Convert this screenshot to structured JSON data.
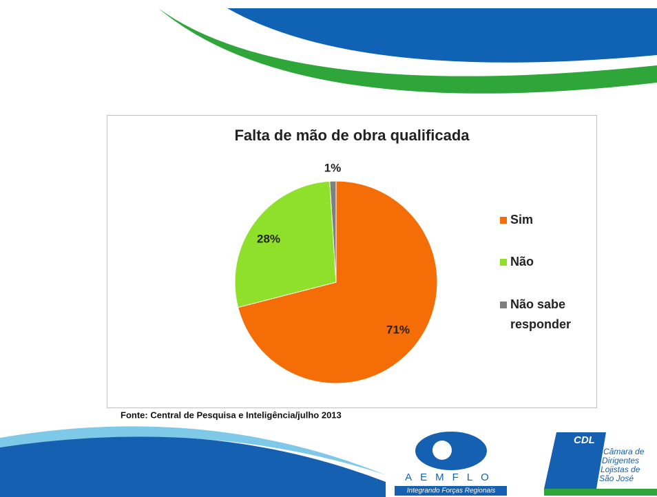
{
  "chart_data": {
    "type": "pie",
    "title": "Falta de mão de obra qualificada",
    "categories": [
      "Sim",
      "Não",
      "Não sabe responder"
    ],
    "values": [
      71,
      28,
      1
    ],
    "value_labels": [
      "71%",
      "28%",
      "1%"
    ],
    "colors": [
      "#f46d06",
      "#8fe02a",
      "#7f7f7f"
    ],
    "legend": "right",
    "source": "Fonte: Central de Pesquisa e Inteligência/julho 2013"
  },
  "logos": {
    "aemflo": "AEMFLO",
    "aemflo_tagline": "Integrando Forças Regionais",
    "cdl": "CDL",
    "cdl_lines": [
      "Câmara de",
      "Dirigentes",
      "Lojistas de",
      "São José"
    ]
  }
}
